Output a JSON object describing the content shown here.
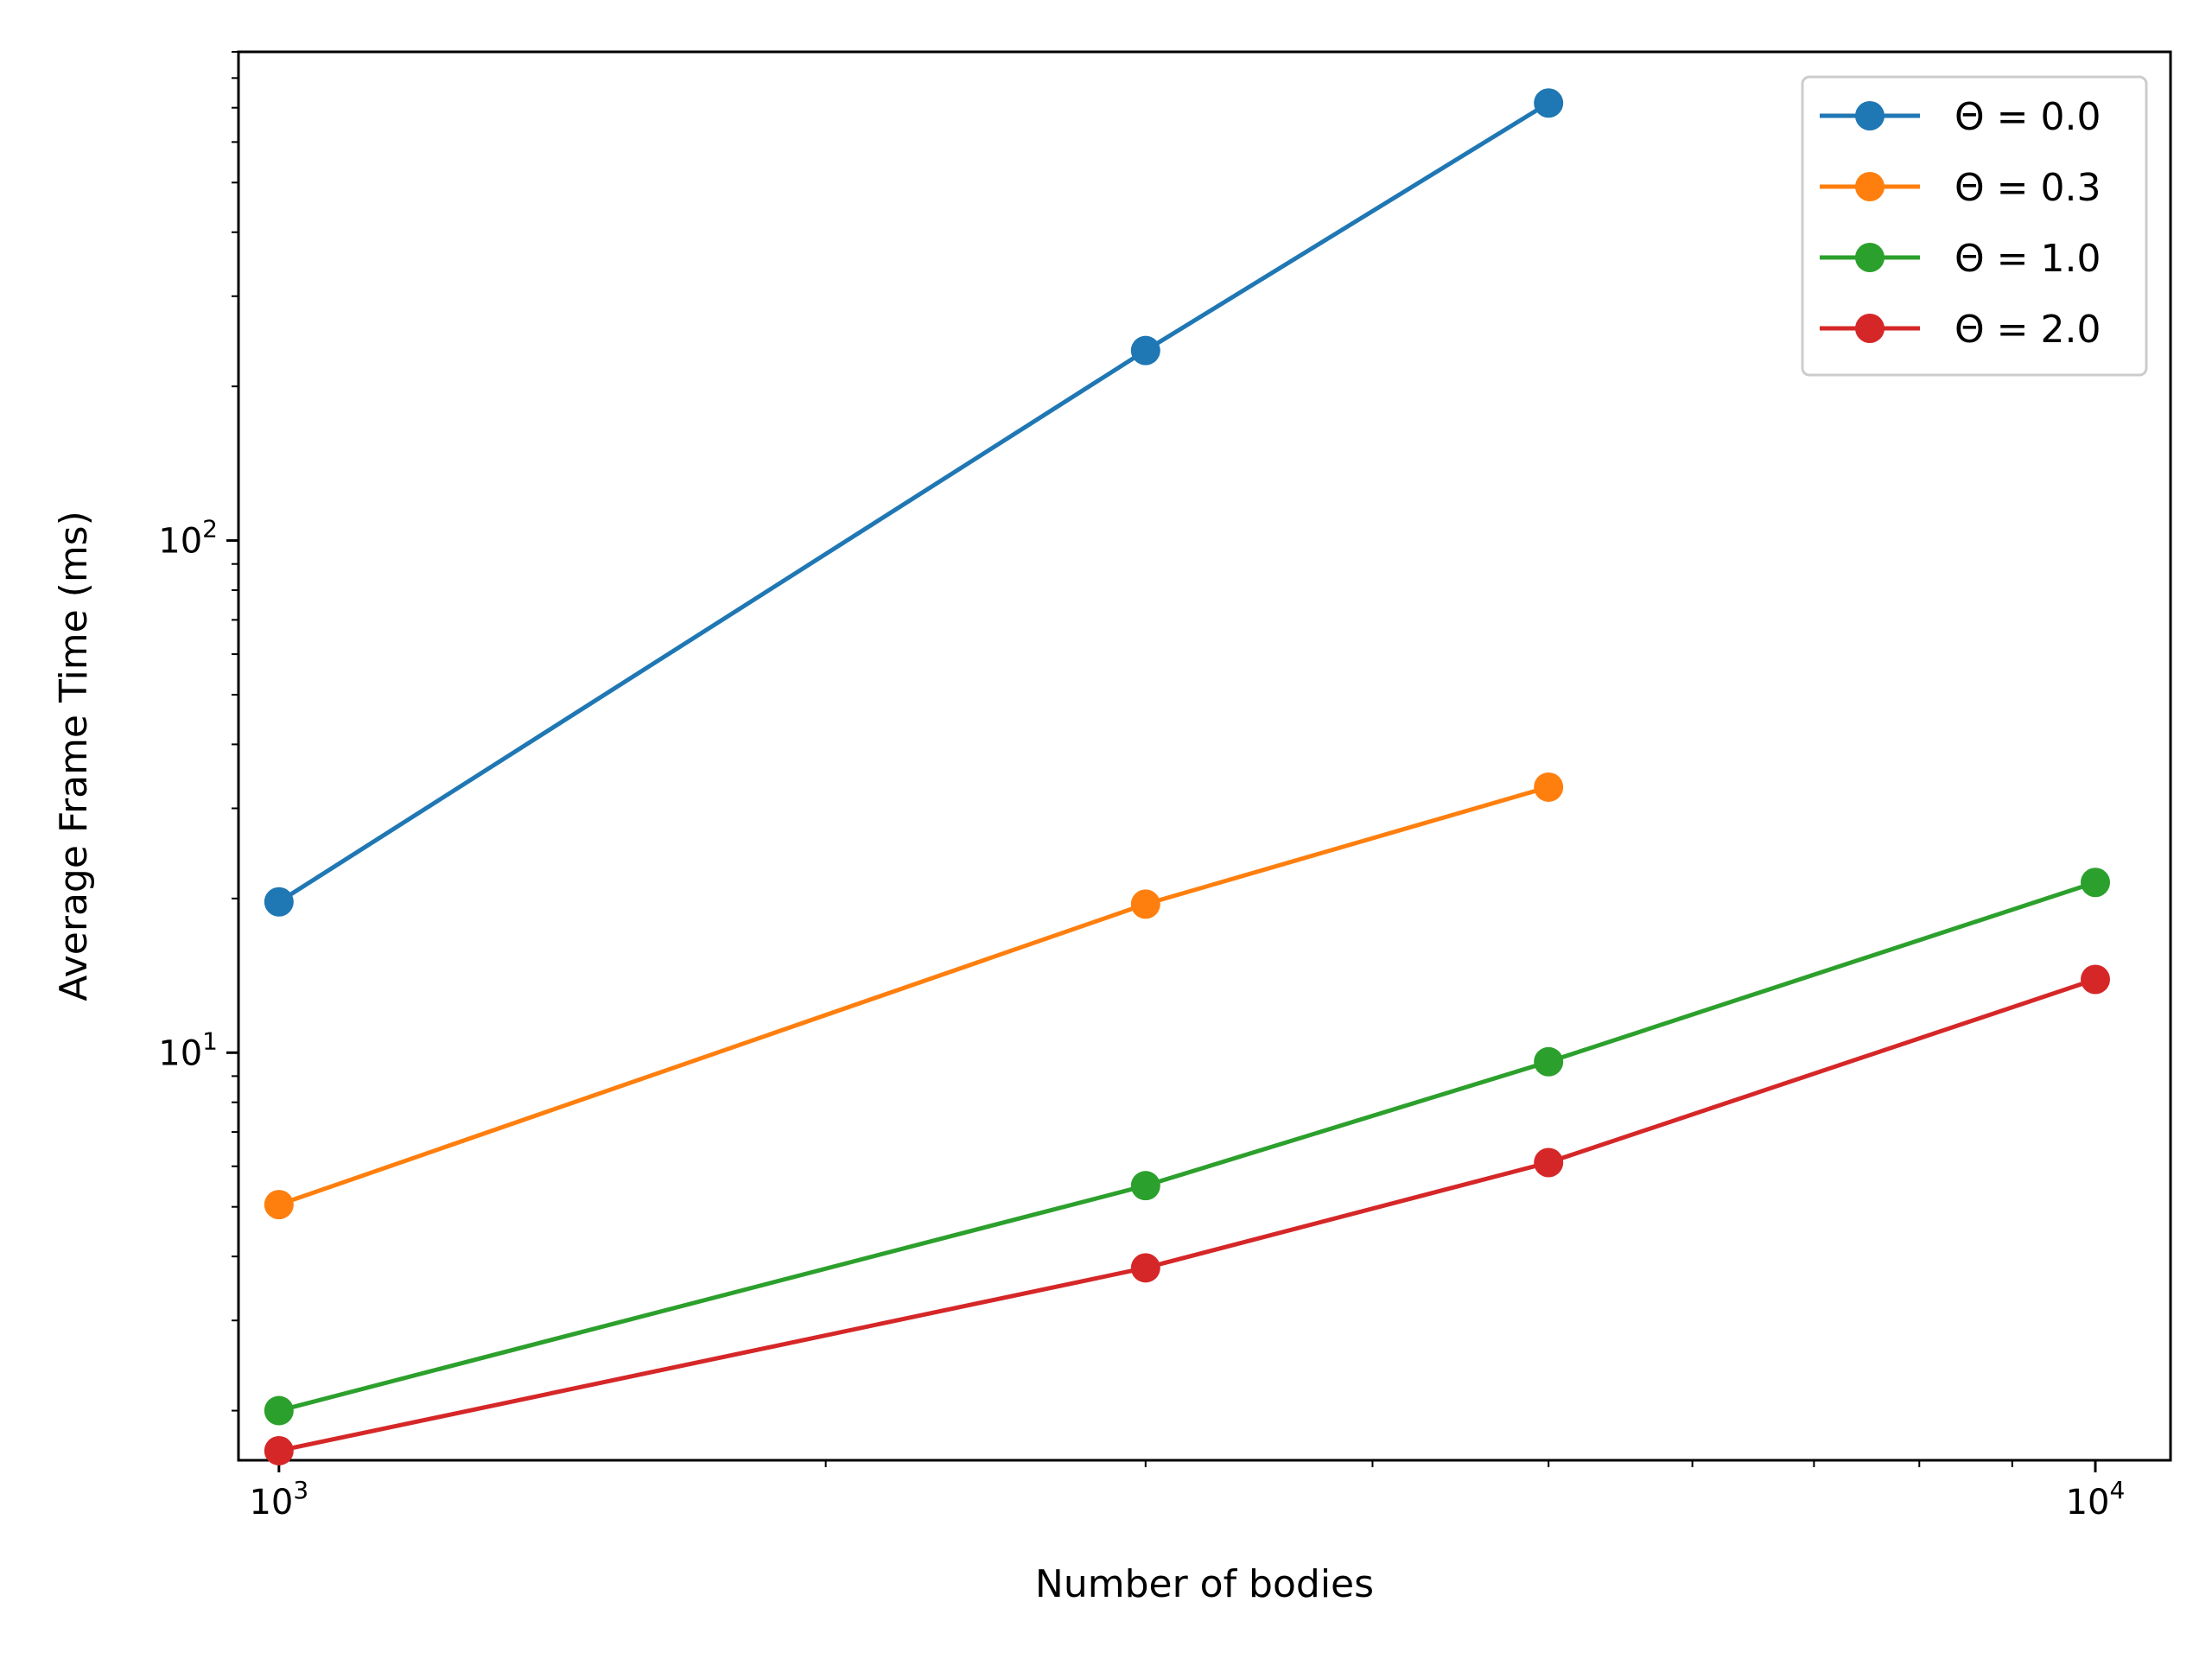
{
  "chart_data": {
    "type": "line",
    "title": "",
    "xlabel": "Number of bodies",
    "ylabel": "Average Frame Time (ms)",
    "xscale": "log",
    "yscale": "log",
    "xlim": [
      950,
      11000
    ],
    "ylim": [
      1.6,
      900
    ],
    "x": [
      1000,
      3000,
      5000,
      10000
    ],
    "x_tick_labels": [
      {
        "value": 1000,
        "base": "10",
        "exp": "3"
      },
      {
        "value": 10000,
        "base": "10",
        "exp": "4"
      }
    ],
    "y_tick_labels": [
      {
        "value": 10,
        "base": "10",
        "exp": "1"
      },
      {
        "value": 100,
        "base": "10",
        "exp": "2"
      }
    ],
    "grid": false,
    "legend_position": "top-right",
    "series": [
      {
        "name": "Θ = 0.0",
        "color": "#1f77b4",
        "x": [
          1000,
          3000,
          5000
        ],
        "values": [
          19.7,
          235,
          715
        ]
      },
      {
        "name": "Θ = 0.3",
        "color": "#ff7f0e",
        "x": [
          1000,
          3000,
          5000
        ],
        "values": [
          5.05,
          19.5,
          33
        ]
      },
      {
        "name": "Θ = 1.0",
        "color": "#2ca02c",
        "x": [
          1000,
          3000,
          5000,
          10000
        ],
        "values": [
          2.0,
          5.5,
          9.6,
          21.5
        ]
      },
      {
        "name": "Θ = 2.0",
        "color": "#d62728",
        "x": [
          1000,
          3000,
          5000,
          10000
        ],
        "values": [
          1.67,
          3.8,
          6.1,
          13.9
        ]
      }
    ]
  }
}
